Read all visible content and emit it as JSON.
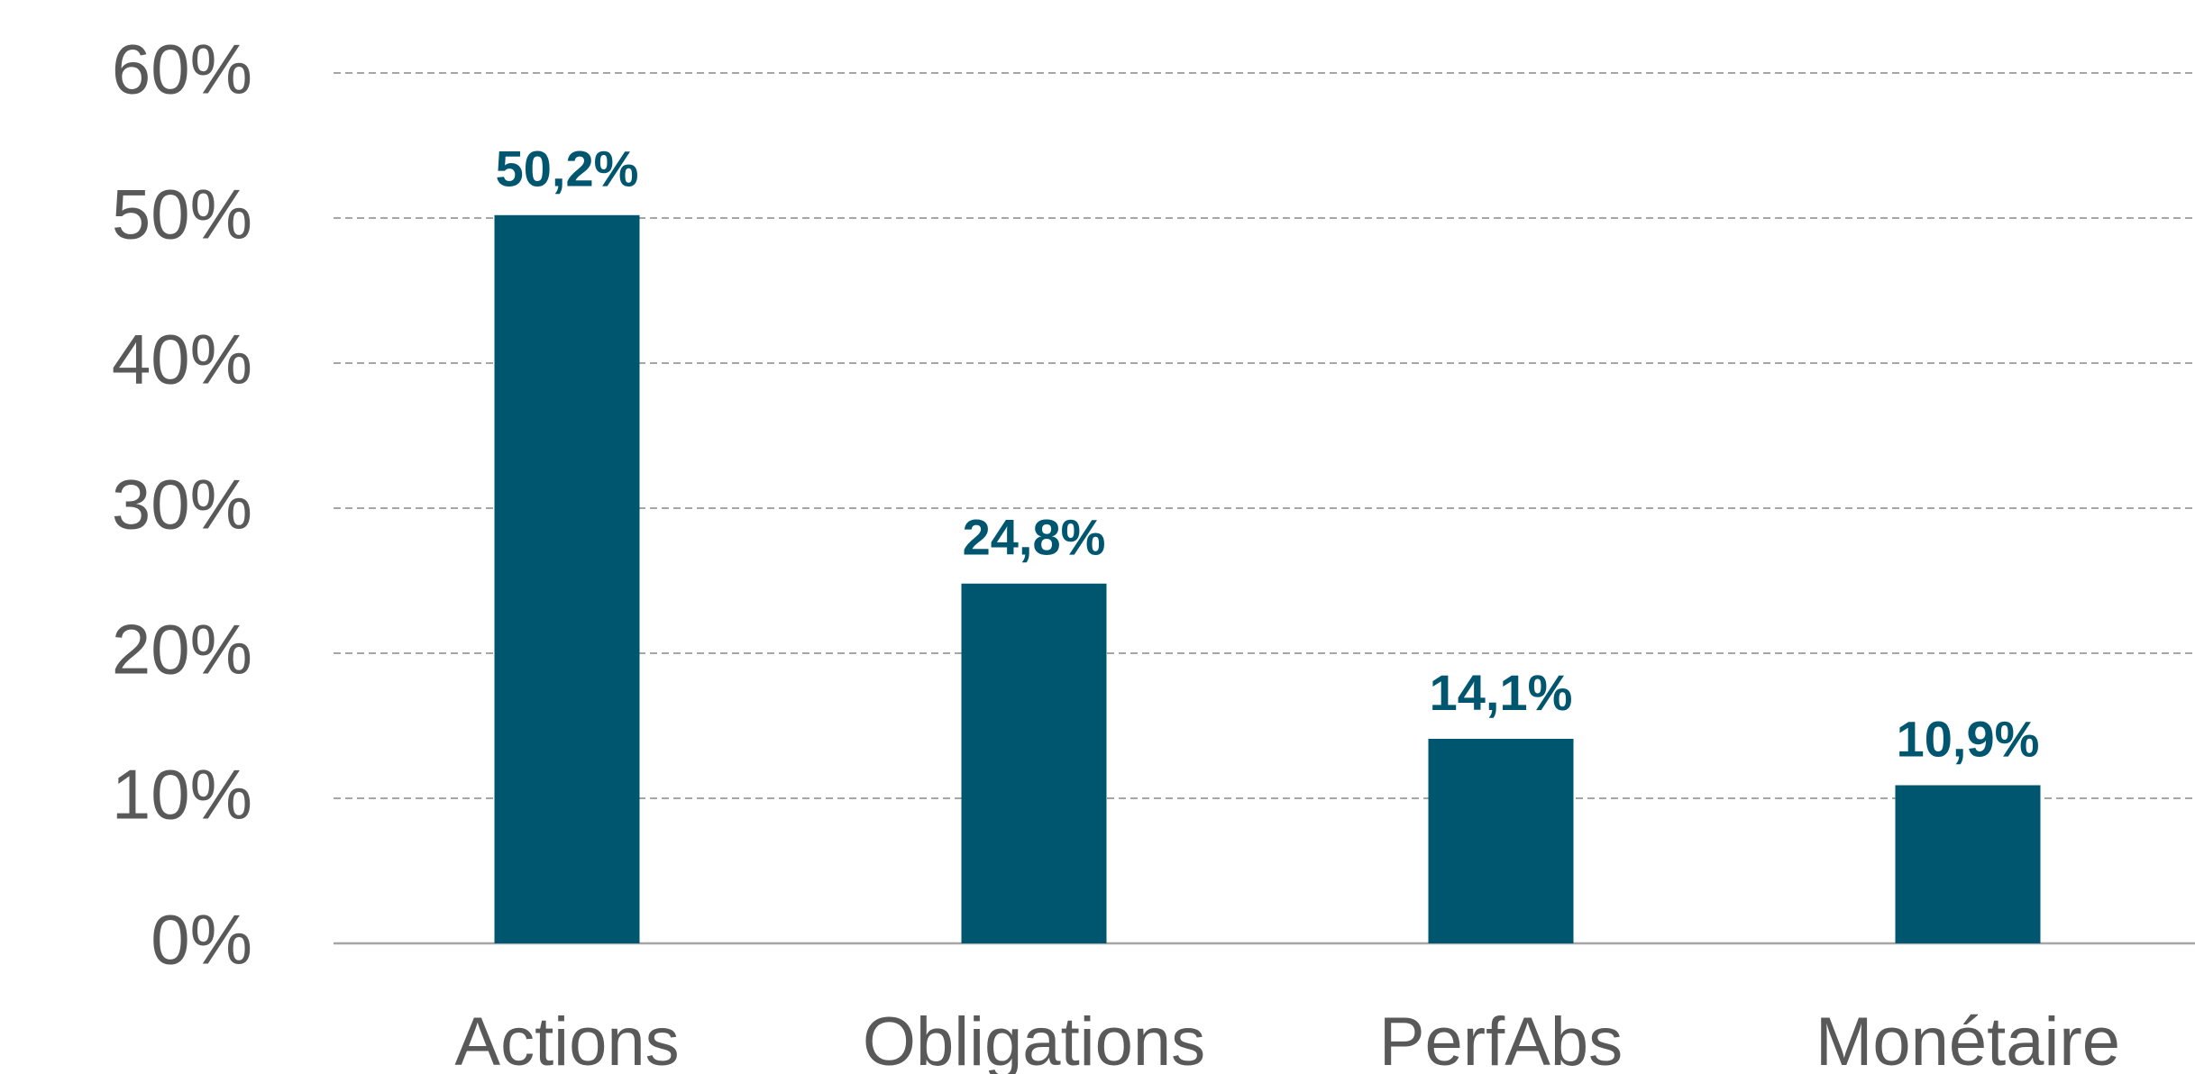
{
  "chart_data": {
    "type": "bar",
    "categories": [
      "Actions",
      "Obligations",
      "PerfAbs",
      "Monétaire"
    ],
    "values": [
      50.2,
      24.8,
      14.1,
      10.9
    ],
    "value_labels": [
      "50,2%",
      "24,8%",
      "14,1%",
      "10,9%"
    ],
    "color": "#00566f",
    "ylim": [
      0,
      60
    ],
    "yticks": [
      {
        "value": 0,
        "label": "0%"
      },
      {
        "value": 10,
        "label": "10%"
      },
      {
        "value": 20,
        "label": "20%"
      },
      {
        "value": 30,
        "label": "30%"
      },
      {
        "value": 40,
        "label": "40%"
      },
      {
        "value": 50,
        "label": "50%"
      },
      {
        "value": 60,
        "label": "60%"
      }
    ],
    "grid": true
  }
}
